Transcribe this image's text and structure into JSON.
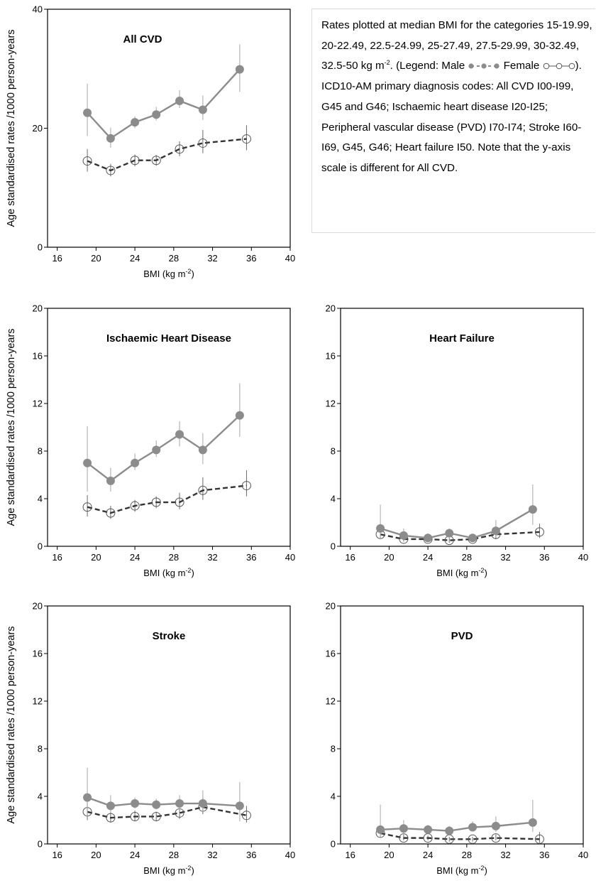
{
  "figure": {
    "note": {
      "p1": "Rates plotted at median BMI for the categories 15-19.99, 20-22.49, 22.5-24.99, 25-27.49, 27.5-29.99, 30-32.49, 32.5-50 kg m",
      "p1_sup": "-2",
      "p2": ". (Legend: Male ",
      "p3": " Female ",
      "p4": "). ICD10-AM primary diagnosis codes: All CVD I00-I99, G45 and G46; Ischaemic heart disease I20-I25; Peripheral vascular disease (PVD) I70-I74; Stroke I60-I69, G45, G46; Heart failure I50. Note that the y-axis scale is different for All CVD."
    },
    "colors": {
      "male": "#8c8c8c",
      "female_line": "#333333",
      "female_marker": "#555555",
      "axis": "#000000"
    },
    "icons": {
      "male_legend": "filled-circle-line-icon",
      "female_legend": "open-circle-line-icon"
    }
  },
  "chart_data": [
    {
      "type": "line",
      "title": "All CVD",
      "xlabel": "BMI (kg m",
      "xlabel_sup": "-2",
      "xlabel_end": ")",
      "ylabel": "Age standardised rates /1000 person-years",
      "xlim": [
        15,
        40
      ],
      "ylim": [
        0,
        40
      ],
      "xticks": [
        16,
        20,
        24,
        28,
        32,
        36,
        40
      ],
      "yticks": [
        0,
        20,
        40
      ],
      "series": [
        {
          "key": "male",
          "x": [
            19.1,
            21.5,
            24.0,
            26.2,
            28.6,
            31.0,
            34.8
          ],
          "y": [
            22.6,
            18.3,
            21.0,
            22.3,
            24.6,
            23.1,
            29.9
          ],
          "err_low": [
            18.7,
            16.7,
            20.0,
            21.3,
            23.4,
            21.4,
            26.1
          ],
          "err_high": [
            27.5,
            20.1,
            22.0,
            23.6,
            26.4,
            25.5,
            34.1
          ]
        },
        {
          "key": "female",
          "x": [
            19.1,
            21.5,
            24.0,
            26.2,
            28.6,
            31.0,
            35.5
          ],
          "y": [
            14.5,
            12.9,
            14.6,
            14.6,
            16.5,
            17.5,
            18.2
          ],
          "err_low": [
            12.7,
            11.9,
            13.6,
            13.7,
            15.3,
            15.8,
            16.3
          ],
          "err_high": [
            16.5,
            14.0,
            15.6,
            15.5,
            17.8,
            19.7,
            20.5
          ]
        }
      ]
    },
    {
      "type": "line",
      "title": "Ischaemic Heart Disease",
      "xlabel": "BMI (kg m",
      "xlabel_sup": "-2",
      "xlabel_end": ")",
      "ylabel": "Age standardised rates /1000 person-years",
      "xlim": [
        15,
        40
      ],
      "ylim": [
        0,
        20
      ],
      "xticks": [
        16,
        20,
        24,
        28,
        32,
        36,
        40
      ],
      "yticks": [
        0,
        4,
        8,
        12,
        16,
        20
      ],
      "series": [
        {
          "key": "male",
          "x": [
            19.1,
            21.5,
            24.0,
            26.2,
            28.6,
            31.0,
            34.8
          ],
          "y": [
            7.0,
            5.5,
            7.0,
            8.1,
            9.4,
            8.1,
            11.0
          ],
          "err_low": [
            4.6,
            4.6,
            6.4,
            7.5,
            8.4,
            6.9,
            9.2
          ],
          "err_high": [
            10.1,
            6.6,
            7.8,
            8.9,
            10.5,
            9.5,
            13.7
          ]
        },
        {
          "key": "female",
          "x": [
            19.1,
            21.5,
            24.0,
            26.2,
            28.6,
            31.0,
            35.5
          ],
          "y": [
            3.3,
            2.8,
            3.4,
            3.7,
            3.7,
            4.7,
            5.1
          ],
          "err_low": [
            2.5,
            2.3,
            2.9,
            3.2,
            3.1,
            3.9,
            4.2
          ],
          "err_high": [
            4.3,
            3.4,
            3.9,
            4.2,
            4.5,
            5.8,
            6.4
          ]
        }
      ]
    },
    {
      "type": "line",
      "title": "Heart Failure",
      "xlabel": "BMI (kg m",
      "xlabel_sup": "-2",
      "xlabel_end": ")",
      "ylabel": "",
      "xlim": [
        15,
        40
      ],
      "ylim": [
        0,
        20
      ],
      "xticks": [
        16,
        20,
        24,
        28,
        32,
        36,
        40
      ],
      "yticks": [
        0,
        4,
        8,
        12,
        16,
        20
      ],
      "series": [
        {
          "key": "male",
          "x": [
            19.1,
            21.5,
            24.0,
            26.2,
            28.6,
            31.0,
            34.8
          ],
          "y": [
            1.5,
            0.9,
            0.7,
            1.1,
            0.7,
            1.3,
            3.1
          ],
          "err_low": [
            0.6,
            0.5,
            0.5,
            0.8,
            0.5,
            0.8,
            1.8
          ],
          "err_high": [
            3.5,
            1.5,
            1.0,
            1.5,
            1.0,
            2.2,
            5.2
          ]
        },
        {
          "key": "female",
          "x": [
            19.1,
            21.5,
            24.0,
            26.2,
            28.6,
            31.0,
            35.5
          ],
          "y": [
            1.0,
            0.6,
            0.6,
            0.5,
            0.6,
            1.0,
            1.2
          ],
          "err_low": [
            0.6,
            0.4,
            0.4,
            0.3,
            0.4,
            0.6,
            0.7
          ],
          "err_high": [
            1.5,
            0.9,
            0.8,
            0.7,
            0.8,
            1.5,
            1.9
          ]
        }
      ]
    },
    {
      "type": "line",
      "title": "Stroke",
      "xlabel": "BMI (kg m",
      "xlabel_sup": "-2",
      "xlabel_end": ")",
      "ylabel": "Age standardised rates /1000 person-years",
      "xlim": [
        15,
        40
      ],
      "ylim": [
        0,
        20
      ],
      "xticks": [
        16,
        20,
        24,
        28,
        32,
        36,
        40
      ],
      "yticks": [
        0,
        4,
        8,
        12,
        16,
        20
      ],
      "series": [
        {
          "key": "male",
          "x": [
            19.1,
            21.5,
            24.0,
            26.2,
            28.6,
            31.0,
            34.8
          ],
          "y": [
            3.9,
            3.2,
            3.4,
            3.3,
            3.4,
            3.4,
            3.2
          ],
          "err_low": [
            2.3,
            2.6,
            3.0,
            2.9,
            2.9,
            2.7,
            1.9
          ],
          "err_high": [
            6.4,
            4.1,
            3.9,
            3.8,
            4.1,
            4.5,
            5.2
          ]
        },
        {
          "key": "female",
          "x": [
            19.1,
            21.5,
            24.0,
            26.2,
            28.6,
            31.0,
            35.5
          ],
          "y": [
            2.7,
            2.2,
            2.3,
            2.3,
            2.6,
            3.1,
            2.4
          ],
          "err_low": [
            2.0,
            1.8,
            1.9,
            1.9,
            2.1,
            2.5,
            1.8
          ],
          "err_high": [
            3.5,
            2.7,
            2.8,
            2.7,
            3.2,
            3.9,
            3.2
          ]
        }
      ]
    },
    {
      "type": "line",
      "title": "PVD",
      "xlabel": "BMI (kg m",
      "xlabel_sup": "-2",
      "xlabel_end": ")",
      "ylabel": "",
      "xlim": [
        15,
        40
      ],
      "ylim": [
        0,
        20
      ],
      "xticks": [
        16,
        20,
        24,
        28,
        32,
        36,
        40
      ],
      "yticks": [
        0,
        4,
        8,
        12,
        16,
        20
      ],
      "series": [
        {
          "key": "male",
          "x": [
            19.1,
            21.5,
            24.0,
            26.2,
            28.6,
            31.0,
            34.8
          ],
          "y": [
            1.2,
            1.3,
            1.2,
            1.1,
            1.4,
            1.5,
            1.8
          ],
          "err_low": [
            0.5,
            0.8,
            0.9,
            0.8,
            1.1,
            1.0,
            1.0
          ],
          "err_high": [
            3.3,
            2.0,
            1.6,
            1.5,
            1.9,
            2.3,
            3.7
          ]
        },
        {
          "key": "female",
          "x": [
            19.1,
            21.5,
            24.0,
            26.2,
            28.6,
            31.0,
            35.5
          ],
          "y": [
            0.9,
            0.5,
            0.5,
            0.4,
            0.4,
            0.5,
            0.4
          ],
          "err_low": [
            0.5,
            0.3,
            0.3,
            0.2,
            0.2,
            0.3,
            0.1
          ],
          "err_high": [
            1.4,
            0.8,
            0.7,
            0.6,
            0.6,
            0.8,
            1.0
          ]
        }
      ]
    }
  ]
}
